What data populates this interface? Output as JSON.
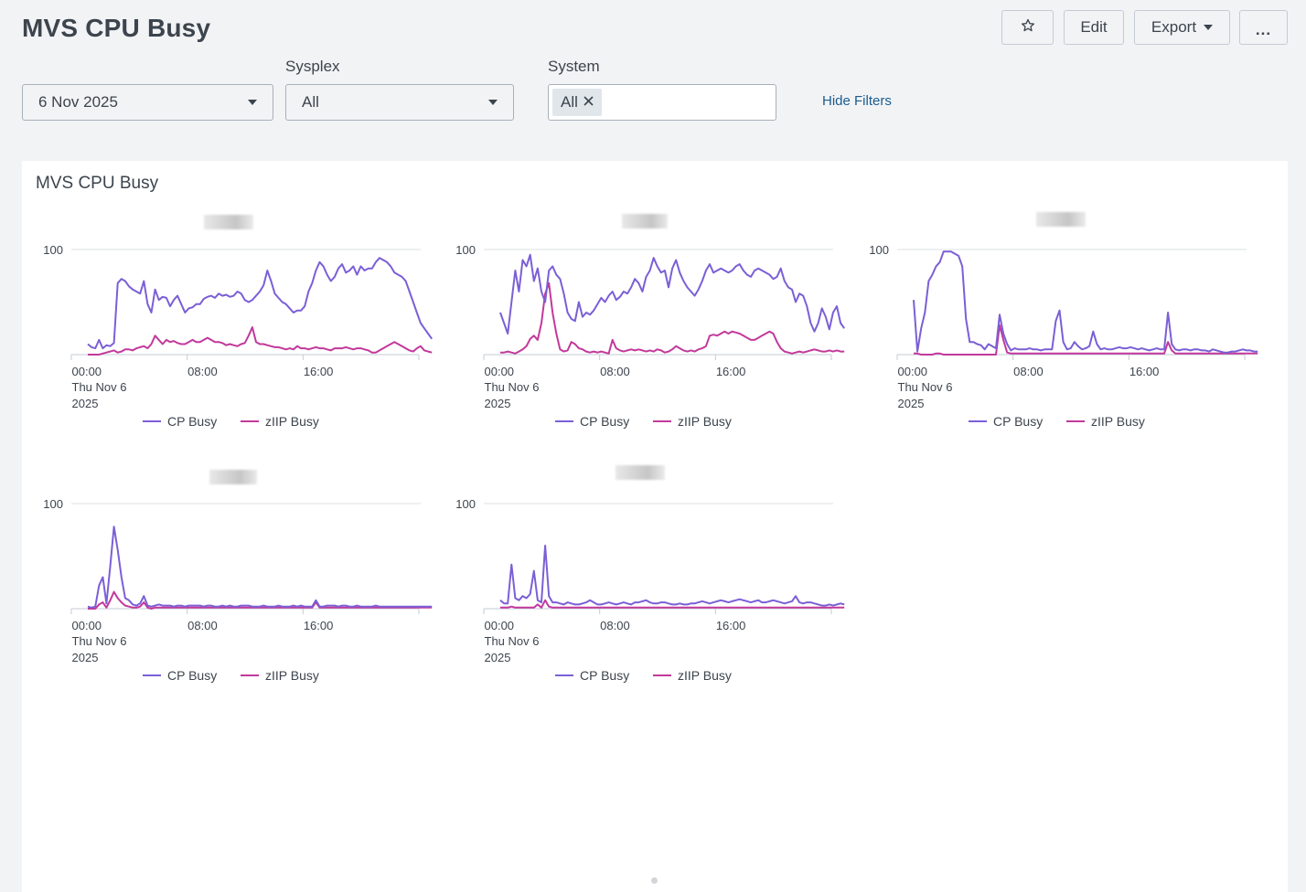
{
  "header": {
    "title": "MVS CPU Busy",
    "edit_label": "Edit",
    "export_label": "Export",
    "more_label": "..."
  },
  "filters": {
    "date_value": "6 Nov 2025",
    "sysplex_label": "Sysplex",
    "sysplex_value": "All",
    "system_label": "System",
    "system_chip": "All",
    "hide_filters_label": "Hide Filters"
  },
  "icons": {
    "favorite": "star-icon",
    "dropdown": "caret-down-icon",
    "remove_chip": "close-icon"
  },
  "panel": {
    "title": "MVS CPU Busy"
  },
  "colors": {
    "cp_busy": "#7b5fd6",
    "ziip_busy": "#c2399b"
  },
  "chart_data": [
    {
      "type": "line",
      "title": "",
      "x_ticks": [
        "00:00",
        "08:00",
        "16:00"
      ],
      "x_date_line1": "Thu Nov 6",
      "x_date_line2": "2025",
      "xlim_hours": [
        0,
        24
      ],
      "y_ticks": [
        "100"
      ],
      "ylim": [
        0,
        100
      ],
      "grid": true,
      "legend": "bottom",
      "series": [
        {
          "name": "CP Busy",
          "values": [
            10,
            7,
            6,
            14,
            6,
            9,
            8,
            11,
            68,
            72,
            70,
            65,
            62,
            60,
            58,
            70,
            48,
            40,
            62,
            52,
            55,
            54,
            46,
            52,
            56,
            48,
            40,
            44,
            45,
            48,
            48,
            53,
            55,
            56,
            54,
            58,
            56,
            57,
            55,
            56,
            60,
            58,
            52,
            50,
            52,
            56,
            60,
            66,
            80,
            70,
            58,
            54,
            50,
            48,
            44,
            40,
            42,
            42,
            46,
            60,
            68,
            80,
            88,
            84,
            76,
            70,
            74,
            82,
            86,
            78,
            80,
            84,
            76,
            84,
            80,
            82,
            82,
            88,
            92,
            90,
            88,
            84,
            78,
            76,
            74,
            70,
            60,
            50,
            40,
            30,
            25,
            20,
            15
          ]
        },
        {
          "name": "zIIP Busy",
          "values": [
            0,
            0,
            0,
            0,
            1,
            2,
            3,
            4,
            2,
            3,
            5,
            5,
            4,
            6,
            7,
            8,
            6,
            10,
            18,
            14,
            10,
            14,
            12,
            13,
            11,
            10,
            10,
            12,
            14,
            12,
            12,
            14,
            16,
            14,
            12,
            12,
            11,
            9,
            10,
            9,
            8,
            10,
            11,
            18,
            26,
            12,
            10,
            10,
            9,
            8,
            7,
            7,
            6,
            5,
            6,
            5,
            8,
            6,
            6,
            5,
            6,
            7,
            6,
            6,
            5,
            4,
            6,
            6,
            6,
            7,
            6,
            5,
            6,
            6,
            5,
            4,
            2,
            2,
            4,
            6,
            8,
            10,
            12,
            10,
            8,
            6,
            4,
            3,
            6,
            8,
            4,
            3,
            2
          ]
        }
      ]
    },
    {
      "type": "line",
      "title": "",
      "x_ticks": [
        "00:00",
        "08:00",
        "16:00"
      ],
      "x_date_line1": "Thu Nov 6",
      "x_date_line2": "2025",
      "xlim_hours": [
        0,
        24
      ],
      "y_ticks": [
        "100"
      ],
      "ylim": [
        0,
        100
      ],
      "grid": true,
      "legend": "bottom",
      "series": [
        {
          "name": "CP Busy",
          "values": [
            40,
            30,
            20,
            50,
            80,
            60,
            90,
            84,
            95,
            70,
            82,
            60,
            50,
            80,
            84,
            76,
            72,
            58,
            40,
            34,
            32,
            50,
            36,
            40,
            38,
            42,
            48,
            54,
            50,
            56,
            60,
            52,
            55,
            60,
            58,
            64,
            72,
            68,
            60,
            74,
            80,
            92,
            84,
            78,
            80,
            64,
            82,
            90,
            78,
            70,
            64,
            60,
            56,
            62,
            70,
            80,
            86,
            78,
            80,
            82,
            80,
            78,
            80,
            84,
            86,
            80,
            76,
            74,
            80,
            82,
            80,
            78,
            76,
            72,
            74,
            82,
            70,
            64,
            62,
            50,
            58,
            56,
            46,
            30,
            22,
            30,
            44,
            36,
            24,
            40,
            46,
            30,
            25
          ]
        },
        {
          "name": "zIIP Busy",
          "values": [
            2,
            2,
            3,
            2,
            1,
            3,
            5,
            8,
            15,
            18,
            14,
            30,
            58,
            68,
            40,
            20,
            5,
            3,
            4,
            12,
            10,
            6,
            5,
            3,
            2,
            3,
            2,
            3,
            2,
            1,
            14,
            6,
            4,
            3,
            4,
            5,
            4,
            5,
            4,
            3,
            4,
            3,
            5,
            4,
            2,
            3,
            5,
            8,
            6,
            4,
            3,
            4,
            3,
            5,
            6,
            8,
            18,
            19,
            18,
            20,
            22,
            20,
            22,
            21,
            20,
            18,
            16,
            14,
            14,
            16,
            18,
            20,
            22,
            20,
            12,
            6,
            3,
            2,
            1,
            2,
            3,
            2,
            3,
            4,
            5,
            4,
            3,
            3,
            4,
            3,
            4,
            3,
            3
          ]
        }
      ]
    },
    {
      "type": "line",
      "title": "",
      "x_ticks": [
        "00:00",
        "08:00",
        "16:00"
      ],
      "x_date_line1": "Thu Nov 6",
      "x_date_line2": "2025",
      "xlim_hours": [
        0,
        24
      ],
      "y_ticks": [
        "100"
      ],
      "ylim": [
        0,
        100
      ],
      "grid": true,
      "legend": "bottom",
      "series": [
        {
          "name": "CP Busy",
          "values": [
            52,
            3,
            25,
            40,
            70,
            76,
            84,
            88,
            98,
            98,
            98,
            96,
            94,
            84,
            34,
            12,
            12,
            10,
            9,
            5,
            10,
            8,
            6,
            38,
            20,
            10,
            4,
            6,
            5,
            5,
            5,
            6,
            5,
            5,
            4,
            5,
            5,
            5,
            32,
            42,
            12,
            5,
            6,
            12,
            8,
            5,
            6,
            8,
            22,
            10,
            5,
            6,
            5,
            5,
            6,
            7,
            6,
            6,
            7,
            6,
            5,
            6,
            5,
            4,
            5,
            6,
            5,
            5,
            40,
            10,
            5,
            4,
            5,
            5,
            4,
            5,
            5,
            4,
            4,
            3,
            5,
            4,
            3,
            2,
            2,
            3,
            3,
            4,
            5,
            4,
            4,
            3,
            3
          ]
        },
        {
          "name": "zIIP Busy",
          "values": [
            1,
            1,
            0,
            0,
            0,
            0,
            1,
            1,
            0,
            0,
            0,
            0,
            0,
            0,
            0,
            0,
            0,
            0,
            0,
            0,
            0,
            0,
            0,
            28,
            14,
            2,
            1,
            1,
            1,
            1,
            1,
            1,
            1,
            1,
            1,
            1,
            1,
            1,
            1,
            1,
            1,
            1,
            1,
            1,
            1,
            1,
            1,
            1,
            1,
            1,
            1,
            1,
            1,
            1,
            1,
            1,
            1,
            1,
            1,
            1,
            1,
            1,
            1,
            1,
            1,
            1,
            1,
            1,
            12,
            4,
            1,
            1,
            1,
            1,
            1,
            1,
            1,
            1,
            1,
            1,
            1,
            1,
            1,
            1,
            1,
            1,
            1,
            1,
            1,
            1,
            1,
            1,
            1
          ]
        }
      ]
    },
    {
      "type": "line",
      "title": "",
      "x_ticks": [
        "00:00",
        "08:00",
        "16:00"
      ],
      "x_date_line1": "Thu Nov 6",
      "x_date_line2": "2025",
      "xlim_hours": [
        0,
        24
      ],
      "y_ticks": [
        "100"
      ],
      "ylim": [
        0,
        100
      ],
      "grid": true,
      "legend": "bottom",
      "series": [
        {
          "name": "CP Busy",
          "values": [
            2,
            1,
            2,
            22,
            30,
            5,
            40,
            78,
            56,
            30,
            10,
            8,
            4,
            3,
            5,
            12,
            3,
            2,
            3,
            4,
            3,
            3,
            3,
            2,
            3,
            3,
            2,
            3,
            3,
            3,
            3,
            2,
            3,
            3,
            2,
            2,
            3,
            2,
            3,
            2,
            2,
            3,
            3,
            3,
            2,
            2,
            2,
            3,
            2,
            2,
            2,
            3,
            2,
            2,
            2,
            3,
            2,
            3,
            2,
            2,
            2,
            8,
            2,
            2,
            3,
            3,
            3,
            2,
            3,
            3,
            2,
            2,
            3,
            2,
            2,
            2,
            2,
            3,
            2,
            2,
            2,
            2,
            2,
            2,
            2,
            2,
            2,
            2,
            2,
            2,
            2,
            2,
            2
          ]
        },
        {
          "name": "zIIP Busy",
          "values": [
            0,
            0,
            0,
            4,
            6,
            1,
            8,
            16,
            10,
            6,
            3,
            2,
            1,
            1,
            2,
            6,
            1,
            0,
            1,
            1,
            1,
            1,
            1,
            1,
            1,
            1,
            1,
            1,
            1,
            1,
            1,
            1,
            1,
            1,
            1,
            1,
            1,
            1,
            1,
            1,
            1,
            1,
            1,
            1,
            1,
            1,
            1,
            1,
            1,
            1,
            1,
            1,
            1,
            1,
            1,
            1,
            1,
            1,
            1,
            1,
            1,
            6,
            1,
            1,
            1,
            1,
            1,
            1,
            1,
            1,
            1,
            1,
            1,
            1,
            1,
            1,
            1,
            1,
            1,
            1,
            1,
            1,
            1,
            1,
            1,
            1,
            1,
            1,
            1,
            1,
            1,
            1,
            1
          ]
        }
      ]
    },
    {
      "type": "line",
      "title": "",
      "x_ticks": [
        "00:00",
        "08:00",
        "16:00"
      ],
      "x_date_line1": "Thu Nov 6",
      "x_date_line2": "2025",
      "xlim_hours": [
        0,
        24
      ],
      "y_ticks": [
        "100"
      ],
      "ylim": [
        0,
        100
      ],
      "grid": true,
      "legend": "bottom",
      "series": [
        {
          "name": "CP Busy",
          "values": [
            8,
            5,
            5,
            42,
            10,
            8,
            12,
            10,
            14,
            36,
            8,
            6,
            60,
            12,
            6,
            6,
            5,
            4,
            6,
            5,
            4,
            4,
            5,
            6,
            8,
            6,
            4,
            4,
            5,
            6,
            5,
            4,
            5,
            6,
            5,
            4,
            6,
            6,
            7,
            8,
            6,
            5,
            5,
            6,
            6,
            5,
            4,
            4,
            5,
            4,
            4,
            5,
            5,
            6,
            7,
            6,
            5,
            6,
            7,
            8,
            7,
            6,
            7,
            8,
            9,
            8,
            7,
            6,
            7,
            8,
            6,
            6,
            7,
            8,
            7,
            6,
            5,
            6,
            7,
            12,
            6,
            5,
            6,
            6,
            5,
            4,
            3,
            3,
            4,
            3,
            4,
            5,
            4
          ]
        },
        {
          "name": "zIIP Busy",
          "values": [
            1,
            1,
            1,
            2,
            1,
            1,
            1,
            1,
            1,
            1,
            4,
            1,
            8,
            2,
            1,
            1,
            1,
            1,
            1,
            1,
            1,
            1,
            1,
            1,
            1,
            1,
            1,
            1,
            1,
            1,
            1,
            1,
            1,
            1,
            1,
            1,
            1,
            1,
            1,
            1,
            1,
            1,
            1,
            1,
            1,
            1,
            1,
            1,
            1,
            1,
            1,
            1,
            1,
            1,
            1,
            1,
            1,
            1,
            1,
            1,
            1,
            1,
            1,
            1,
            1,
            1,
            1,
            1,
            1,
            1,
            1,
            1,
            1,
            1,
            1,
            1,
            1,
            1,
            1,
            1,
            1,
            1,
            1,
            1,
            1,
            1,
            1,
            1,
            1,
            1,
            1,
            1,
            1
          ]
        }
      ]
    }
  ]
}
